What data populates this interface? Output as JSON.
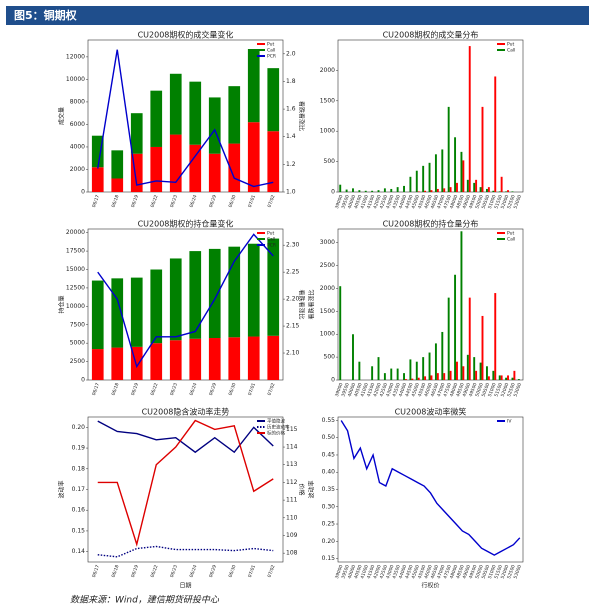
{
  "header": {
    "title": "图5：铜期权"
  },
  "footer": {
    "source": "数据来源：Wind，建信期货研投中心"
  },
  "chart_data": [
    {
      "type": "combo",
      "title": "CU2008期权的成交量变化",
      "ylabel": "成交量",
      "y2label": "看跌看涨比",
      "categories": [
        "06/17",
        "06/18",
        "06/19",
        "06/22",
        "06/23",
        "06/24",
        "06/29",
        "06/30",
        "07/01",
        "07/02"
      ],
      "series": [
        {
          "name": "Put",
          "color": "#ff0000",
          "values": [
            2200,
            1200,
            3400,
            4000,
            5100,
            4200,
            3400,
            4300,
            6200,
            5400
          ]
        },
        {
          "name": "Call",
          "color": "#008000",
          "values": [
            2800,
            2500,
            3600,
            5000,
            5400,
            5600,
            5000,
            5100,
            6500,
            5600
          ]
        },
        {
          "name": "PCR",
          "color": "#0000cc",
          "axis": "y2",
          "values": [
            1.17,
            2.03,
            1.05,
            1.08,
            1.07,
            1.26,
            1.45,
            1.1,
            1.04,
            1.07
          ]
        }
      ],
      "ylim": [
        0,
        13500
      ],
      "yticks": [
        0,
        2000,
        4000,
        6000,
        8000,
        10000,
        12000
      ],
      "y2lim": [
        1.0,
        2.1
      ],
      "y2ticks": [
        {
          "value": 1.0,
          "label": "1.0"
        },
        1.2,
        1.4,
        1.6,
        1.8,
        {
          "value": 2.0,
          "label": "2.0"
        }
      ]
    },
    {
      "type": "grouped_bar",
      "title": "CU2008期权的成交量分布",
      "categories": [
        "39000",
        "39500",
        "40000",
        "40500",
        "41000",
        "41500",
        "42000",
        "42500",
        "43000",
        "43500",
        "44000",
        "44500",
        "45000",
        "45500",
        "46000",
        "46500",
        "47000",
        "47500",
        "48000",
        "48500",
        "49000",
        "49500",
        "50000",
        "50500",
        "51000",
        "51500",
        "52000",
        "52500",
        "53000"
      ],
      "series": [
        {
          "name": "Put",
          "color": "#ff0000",
          "values": [
            0,
            0,
            0,
            0,
            0,
            0,
            0,
            0,
            0,
            0,
            0,
            0,
            10,
            20,
            30,
            50,
            60,
            80,
            150,
            520,
            2400,
            200,
            1400,
            80,
            1900,
            250,
            30,
            0,
            0
          ]
        },
        {
          "name": "Call",
          "color": "#008000",
          "values": [
            120,
            40,
            60,
            30,
            20,
            20,
            30,
            60,
            50,
            80,
            100,
            250,
            350,
            430,
            480,
            620,
            700,
            1400,
            900,
            660,
            200,
            150,
            80,
            50,
            20,
            10,
            10,
            10,
            0
          ]
        }
      ],
      "ylim": [
        0,
        2500
      ],
      "yticks": [
        0,
        500,
        1000,
        1500,
        2000
      ]
    },
    {
      "type": "combo",
      "title": "CU2008期权的持仓量变化",
      "ylabel": "持仓量",
      "y2label": "看跌看涨比",
      "categories": [
        "06/17",
        "06/18",
        "06/19",
        "06/22",
        "06/23",
        "06/24",
        "06/29",
        "06/30",
        "07/01",
        "07/02"
      ],
      "series": [
        {
          "name": "Put",
          "color": "#ff0000",
          "values": [
            4200,
            4400,
            4500,
            5000,
            5400,
            5600,
            5700,
            5800,
            5900,
            6000
          ]
        },
        {
          "name": "Call",
          "color": "#008000",
          "values": [
            9300,
            9400,
            9400,
            10000,
            11100,
            11900,
            12100,
            12300,
            12600,
            13200
          ]
        },
        {
          "name": "PCR",
          "color": "#0000cc",
          "axis": "y2",
          "values": [
            2.25,
            2.2,
            2.075,
            2.13,
            2.13,
            2.14,
            2.2,
            2.27,
            2.32,
            2.28
          ]
        }
      ],
      "ylim": [
        0,
        20500
      ],
      "yticks": [
        0,
        2500,
        5000,
        7500,
        10000,
        12500,
        15000,
        17500,
        20000
      ],
      "y2lim": [
        2.05,
        2.33
      ],
      "y2ticks": [
        {
          "value": 2.1,
          "label": "2.10"
        },
        2.15,
        {
          "value": 2.2,
          "label": "2.20"
        },
        2.25,
        {
          "value": 2.3,
          "label": "2.30"
        }
      ]
    },
    {
      "type": "grouped_bar",
      "title": "CU2008期权的持仓量分布",
      "ylabel": "看跌看涨比",
      "categories": [
        "39000",
        "39500",
        "40000",
        "40500",
        "41000",
        "41500",
        "42000",
        "42500",
        "43000",
        "43500",
        "44000",
        "44500",
        "45000",
        "45500",
        "46000",
        "46500",
        "47000",
        "47500",
        "48000",
        "48500",
        "49000",
        "49500",
        "50000",
        "50500",
        "51000",
        "51500",
        "52000",
        "52500",
        "53000"
      ],
      "series": [
        {
          "name": "Put",
          "color": "#ff0000",
          "values": [
            0,
            0,
            0,
            0,
            0,
            0,
            0,
            0,
            0,
            0,
            20,
            30,
            50,
            80,
            100,
            150,
            150,
            200,
            400,
            300,
            1800,
            200,
            1400,
            80,
            1900,
            100,
            100,
            200,
            0
          ]
        },
        {
          "name": "Call",
          "color": "#008000",
          "values": [
            2050,
            0,
            1000,
            400,
            0,
            300,
            500,
            150,
            250,
            250,
            150,
            450,
            400,
            500,
            600,
            800,
            1050,
            1800,
            2300,
            3250,
            550,
            500,
            380,
            300,
            200,
            100,
            50,
            50,
            20
          ]
        }
      ],
      "ylim": [
        0,
        3300
      ],
      "yticks": [
        0,
        500,
        1000,
        1500,
        2000,
        2500,
        3000
      ]
    },
    {
      "type": "line",
      "title": "CU2008隐含波动率走势",
      "xlabel": "日期",
      "ylabel": "波动率",
      "y2label": "价格",
      "categories": [
        "06/17",
        "06/18",
        "06/19",
        "06/22",
        "06/23",
        "06/24",
        "06/29",
        "06/30",
        "07/01",
        "07/02"
      ],
      "series": [
        {
          "name": "平值隐波",
          "color": "#000080",
          "values": [
            0.203,
            0.198,
            0.197,
            0.194,
            0.195,
            0.188,
            0.195,
            0.188,
            0.2,
            0.191
          ]
        },
        {
          "name": "历史波动率",
          "color": "#000080",
          "dash": true,
          "values": [
            0.1385,
            0.1375,
            0.1415,
            0.1425,
            0.141,
            0.141,
            0.141,
            0.1405,
            0.1415,
            0.1405
          ]
        },
        {
          "name": "标的价格",
          "color": "#dd0000",
          "axis": "y2",
          "values": [
            112,
            112,
            108.5,
            113,
            114,
            115.5,
            115,
            115.2,
            111.5,
            112.2
          ]
        }
      ],
      "ylim": [
        0.135,
        0.205
      ],
      "yticks": [
        0.14,
        0.15,
        0.16,
        0.17,
        0.18,
        0.19,
        {
          "value": 0.2,
          "label": "0.20"
        }
      ],
      "y2lim": [
        107.5,
        115.7
      ],
      "y2ticks": [
        108,
        109,
        110,
        111,
        112,
        113,
        114,
        115
      ]
    },
    {
      "type": "line",
      "title": "CU2008波动率微笑",
      "xlabel": "行权价",
      "ylabel": "波动率",
      "categories": [
        "39000",
        "39500",
        "40000",
        "40500",
        "41000",
        "41500",
        "42000",
        "42500",
        "43000",
        "43500",
        "44000",
        "44500",
        "45000",
        "45500",
        "46000",
        "46500",
        "47000",
        "47500",
        "48000",
        "48500",
        "49000",
        "49500",
        "50000",
        "50500",
        "51000",
        "51500",
        "52000",
        "52500",
        "53000"
      ],
      "series": [
        {
          "name": "IV",
          "color": "#0000cc",
          "values": [
            0.55,
            0.52,
            0.44,
            0.47,
            0.41,
            0.45,
            0.37,
            0.36,
            0.41,
            0.4,
            0.39,
            0.38,
            0.37,
            0.36,
            0.34,
            0.31,
            0.29,
            0.27,
            0.25,
            0.23,
            0.22,
            0.2,
            0.18,
            0.17,
            0.16,
            0.17,
            0.18,
            0.19,
            0.21
          ]
        }
      ],
      "ylim": [
        0.14,
        0.56
      ],
      "yticks": [
        0.15,
        {
          "value": 0.2,
          "label": "0.20"
        },
        0.25,
        {
          "value": 0.3,
          "label": "0.30"
        },
        0.35,
        {
          "value": 0.4,
          "label": "0.40"
        },
        0.45,
        {
          "value": 0.5,
          "label": "0.50"
        },
        0.55
      ]
    }
  ]
}
